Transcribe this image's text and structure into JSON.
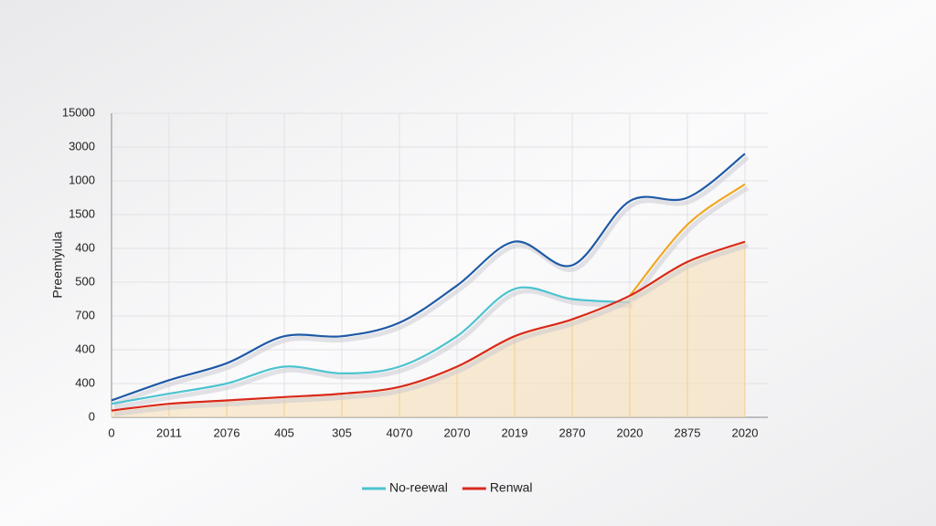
{
  "chart_data": {
    "type": "line",
    "y_axis_label": "Preemlyiula",
    "categories": [
      "0",
      "2011",
      "2076",
      "405",
      "305",
      "4070",
      "2070",
      "2019",
      "2870",
      "2020",
      "2875",
      "2020"
    ],
    "ylim": [
      0,
      9
    ],
    "yticks": [
      {
        "value": 0,
        "label": "0"
      },
      {
        "value": 1,
        "label": "400"
      },
      {
        "value": 2,
        "label": "400"
      },
      {
        "value": 3,
        "label": "700"
      },
      {
        "value": 4,
        "label": "500"
      },
      {
        "value": 5,
        "label": "400"
      },
      {
        "value": 6,
        "label": "1500"
      },
      {
        "value": 7,
        "label": "1000"
      },
      {
        "value": 8,
        "label": "3000"
      },
      {
        "value": 9,
        "label": "15000"
      }
    ],
    "grid": true,
    "series": [
      {
        "color": "#1f5aa6",
        "values": [
          0.5,
          1.1,
          1.6,
          2.4,
          2.4,
          2.8,
          3.9,
          5.2,
          4.5,
          6.4,
          6.5,
          7.8
        ]
      },
      {
        "name": "No-reewal",
        "color": "#4cc3cf",
        "values": [
          0.4,
          0.7,
          1.0,
          1.5,
          1.3,
          1.5,
          2.4,
          3.8,
          3.5,
          3.4,
          null,
          null
        ]
      },
      {
        "color": "#f0a922",
        "values": [
          null,
          null,
          null,
          null,
          null,
          null,
          null,
          null,
          null,
          3.6,
          5.7,
          6.9
        ]
      },
      {
        "name": "Renwal",
        "color": "#d9291c",
        "area": true,
        "values": [
          0.2,
          0.4,
          0.5,
          0.6,
          0.7,
          0.9,
          1.5,
          2.4,
          2.9,
          3.6,
          4.6,
          5.2
        ]
      }
    ],
    "legend": "bottom"
  }
}
